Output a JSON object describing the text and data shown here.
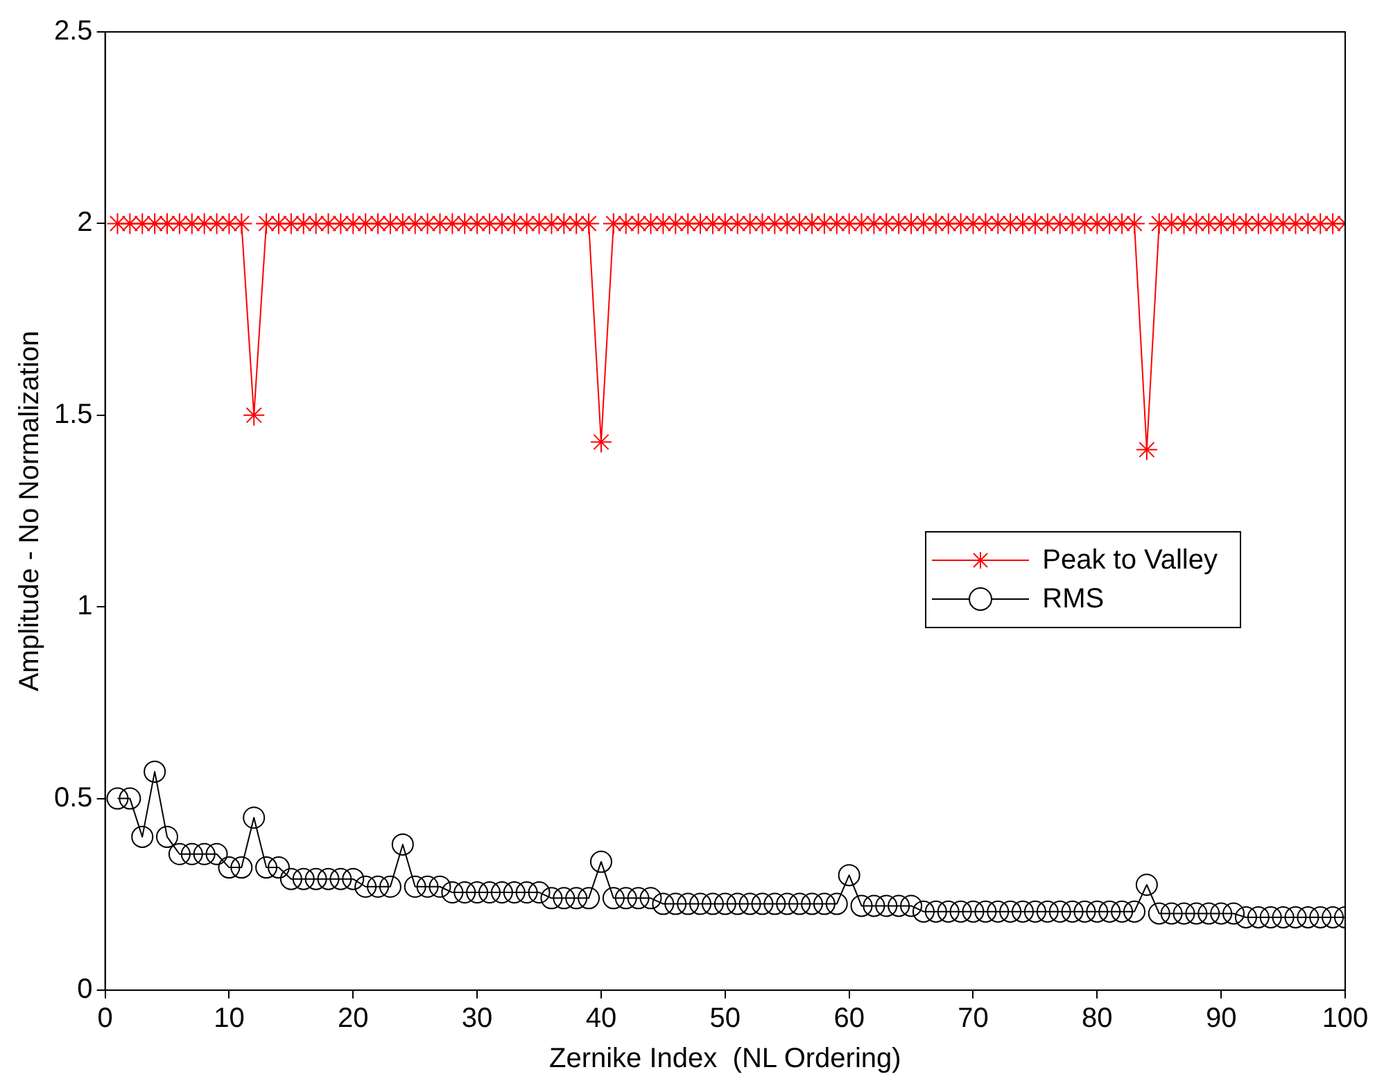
{
  "chart_data": {
    "type": "line",
    "xlabel": "Zernike Index  (NL Ordering)",
    "ylabel": "Amplitude - No Normalization",
    "x": [
      1,
      2,
      3,
      4,
      5,
      6,
      7,
      8,
      9,
      10,
      11,
      12,
      13,
      14,
      15,
      16,
      17,
      18,
      19,
      20,
      21,
      22,
      23,
      24,
      25,
      26,
      27,
      28,
      29,
      30,
      31,
      32,
      33,
      34,
      35,
      36,
      37,
      38,
      39,
      40,
      41,
      42,
      43,
      44,
      45,
      46,
      47,
      48,
      49,
      50,
      51,
      52,
      53,
      54,
      55,
      56,
      57,
      58,
      59,
      60,
      61,
      62,
      63,
      64,
      65,
      66,
      67,
      68,
      69,
      70,
      71,
      72,
      73,
      74,
      75,
      76,
      77,
      78,
      79,
      80,
      81,
      82,
      83,
      84,
      85,
      86,
      87,
      88,
      89,
      90,
      91,
      92,
      93,
      94,
      95,
      96,
      97,
      98,
      99,
      100
    ],
    "series": [
      {
        "name": "Peak to Valley",
        "color": "#ff0000",
        "marker": "cross",
        "values": [
          2,
          2,
          2,
          2,
          2,
          2,
          2,
          2,
          2,
          2,
          2,
          1.5,
          2,
          2,
          2,
          2,
          2,
          2,
          2,
          2,
          2,
          2,
          2,
          2,
          2,
          2,
          2,
          2,
          2,
          2,
          2,
          2,
          2,
          2,
          2,
          2,
          2,
          2,
          2,
          1.43,
          2,
          2,
          2,
          2,
          2,
          2,
          2,
          2,
          2,
          2,
          2,
          2,
          2,
          2,
          2,
          2,
          2,
          2,
          2,
          2,
          2,
          2,
          2,
          2,
          2,
          2,
          2,
          2,
          2,
          2,
          2,
          2,
          2,
          2,
          2,
          2,
          2,
          2,
          2,
          2,
          2,
          2,
          2,
          1.41,
          2,
          2,
          2,
          2,
          2,
          2,
          2,
          2,
          2,
          2,
          2,
          2,
          2,
          2,
          2,
          2
        ]
      },
      {
        "name": "RMS",
        "color": "#000000",
        "marker": "circle",
        "values": [
          0.5,
          0.5,
          0.4,
          0.57,
          0.4,
          0.355,
          0.355,
          0.355,
          0.355,
          0.32,
          0.32,
          0.45,
          0.32,
          0.32,
          0.29,
          0.29,
          0.29,
          0.29,
          0.29,
          0.29,
          0.27,
          0.27,
          0.27,
          0.38,
          0.27,
          0.27,
          0.27,
          0.255,
          0.255,
          0.255,
          0.255,
          0.255,
          0.255,
          0.255,
          0.255,
          0.24,
          0.24,
          0.24,
          0.24,
          0.335,
          0.24,
          0.24,
          0.24,
          0.24,
          0.225,
          0.225,
          0.225,
          0.225,
          0.225,
          0.225,
          0.225,
          0.225,
          0.225,
          0.225,
          0.225,
          0.225,
          0.225,
          0.225,
          0.225,
          0.3,
          0.22,
          0.22,
          0.22,
          0.22,
          0.22,
          0.205,
          0.205,
          0.205,
          0.205,
          0.205,
          0.205,
          0.205,
          0.205,
          0.205,
          0.205,
          0.205,
          0.205,
          0.205,
          0.205,
          0.205,
          0.205,
          0.205,
          0.205,
          0.275,
          0.2,
          0.2,
          0.2,
          0.2,
          0.2,
          0.2,
          0.2,
          0.19,
          0.19,
          0.19,
          0.19,
          0.19,
          0.19,
          0.19,
          0.19,
          0.19
        ]
      }
    ],
    "xlim": [
      0,
      100
    ],
    "xticks": [
      0,
      10,
      20,
      30,
      40,
      50,
      60,
      70,
      80,
      90,
      100
    ],
    "ylim": [
      0,
      2.5
    ],
    "yticks": [
      0,
      0.5,
      1,
      1.5,
      2,
      2.5
    ],
    "grid": false,
    "legend": "right",
    "line_style": "solid"
  }
}
